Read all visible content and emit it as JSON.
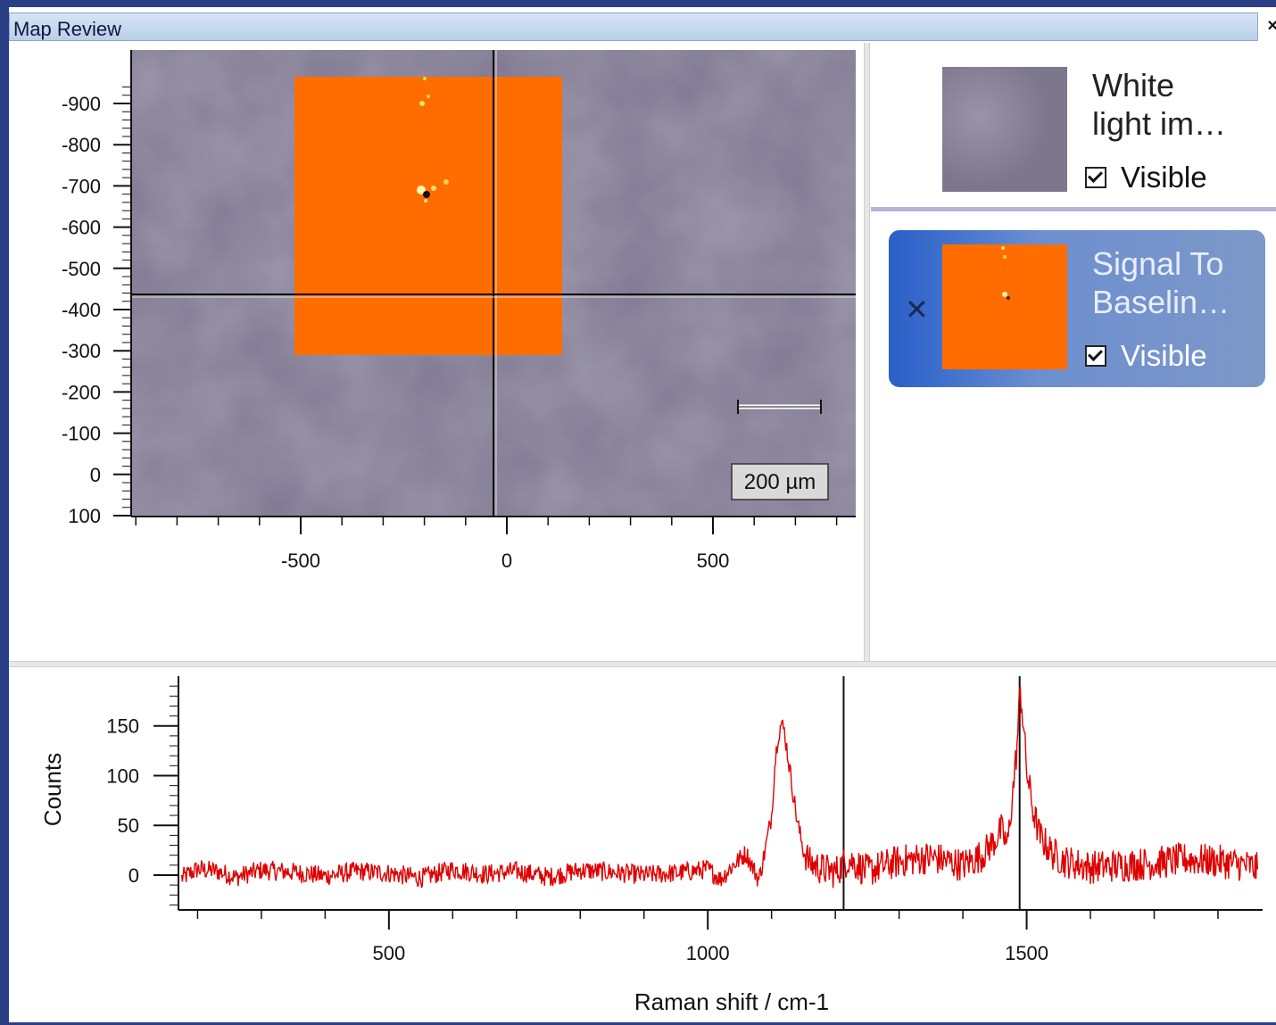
{
  "window": {
    "title": "Map Review",
    "close_symbol": "×"
  },
  "map": {
    "y_ticks": [
      "-900",
      "-800",
      "-700",
      "-600",
      "-500",
      "-400",
      "-300",
      "-200",
      "-100",
      "0",
      "100"
    ],
    "x_ticks": [
      "-500",
      "0",
      "500"
    ],
    "scale_bar": "200 µm",
    "colors": {
      "background": "#776f88",
      "overlay": "#ff6d00",
      "crosshair": "#111111"
    }
  },
  "layers": [
    {
      "name": "White\nlight im…",
      "visible_label": "Visible",
      "visible": true,
      "selected": false,
      "thumbnail_color": "#8a8499"
    },
    {
      "name": "Signal To\nBaselin…",
      "visible_label": "Visible",
      "visible": true,
      "selected": true,
      "thumbnail_color": "#ff6d00",
      "remove_symbol": "✕"
    }
  ],
  "chart_data": {
    "type": "line",
    "xlabel": "Raman shift / cm-1",
    "ylabel": "Counts",
    "xlim": [
      170,
      1870
    ],
    "ylim": [
      -35,
      200
    ],
    "x_ticks": [
      500,
      1000,
      1500
    ],
    "y_ticks": [
      0,
      50,
      100,
      150
    ],
    "cursor_lines": [
      1213,
      1489
    ],
    "series": [
      {
        "color": "#e00000",
        "x": [
          175,
          200,
          230,
          260,
          300,
          350,
          400,
          450,
          500,
          550,
          600,
          650,
          700,
          750,
          800,
          850,
          900,
          950,
          1000,
          1020,
          1040,
          1060,
          1080,
          1090,
          1100,
          1105,
          1110,
          1115,
          1120,
          1130,
          1140,
          1150,
          1160,
          1180,
          1200,
          1220,
          1250,
          1300,
          1350,
          1400,
          1430,
          1450,
          1460,
          1470,
          1480,
          1485,
          1490,
          1495,
          1500,
          1510,
          1520,
          1540,
          1560,
          1600,
          1650,
          1700,
          1750,
          1800,
          1850,
          1862
        ],
        "y": [
          -3,
          6,
          4,
          -2,
          5,
          3,
          -1,
          4,
          2,
          -3,
          6,
          1,
          4,
          -2,
          5,
          3,
          0,
          2,
          6,
          -4,
          10,
          22,
          -5,
          25,
          60,
          110,
          140,
          152,
          145,
          100,
          55,
          25,
          12,
          6,
          3,
          16,
          4,
          14,
          18,
          10,
          20,
          35,
          45,
          30,
          95,
          130,
          188,
          150,
          105,
          65,
          40,
          22,
          14,
          8,
          10,
          12,
          16,
          14,
          9,
          6
        ]
      }
    ]
  }
}
